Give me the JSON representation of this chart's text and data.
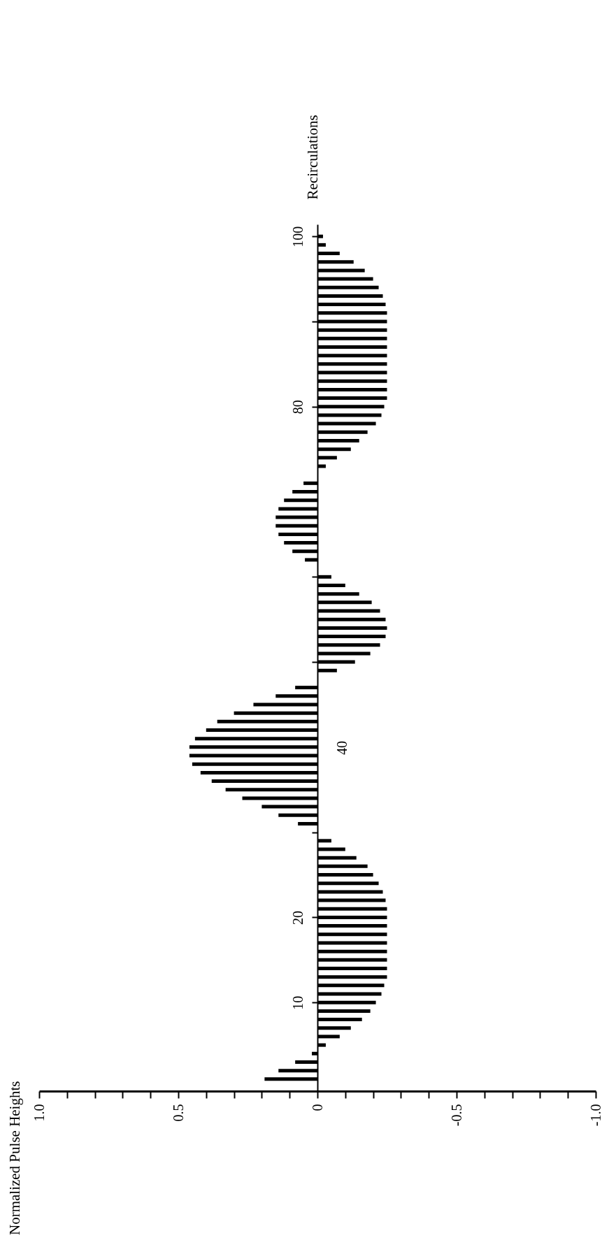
{
  "chart_data": {
    "type": "bar",
    "orientation": "horizontal",
    "ylabel": "Recirculations",
    "annotations": [
      "Normalized Pulse Heights",
      "40"
    ],
    "x": [
      1,
      2,
      3,
      4,
      5,
      6,
      7,
      8,
      9,
      10,
      11,
      12,
      13,
      14,
      15,
      16,
      17,
      18,
      19,
      20,
      21,
      22,
      23,
      24,
      25,
      26,
      27,
      28,
      29,
      30,
      31,
      32,
      33,
      34,
      35,
      36,
      37,
      38,
      39,
      40,
      41,
      42,
      43,
      44,
      45,
      46,
      47,
      48,
      49,
      50,
      51,
      52,
      53,
      54,
      55,
      56,
      57,
      58,
      59,
      60,
      61,
      62,
      63,
      64,
      65,
      66,
      67,
      68,
      69,
      70,
      71,
      72,
      73,
      74,
      75,
      76,
      77,
      78,
      79,
      80,
      81,
      82,
      83,
      84,
      85,
      86,
      87,
      88,
      89,
      90,
      91,
      92,
      93,
      94,
      95,
      96,
      97,
      98,
      99,
      100
    ],
    "values": [
      0.19,
      0.14,
      0.08,
      0.02,
      -0.03,
      -0.08,
      -0.12,
      -0.16,
      -0.19,
      -0.21,
      -0.23,
      -0.24,
      -0.25,
      -0.25,
      -0.25,
      -0.25,
      -0.25,
      -0.25,
      -0.25,
      -0.25,
      -0.25,
      -0.245,
      -0.235,
      -0.22,
      -0.2,
      -0.18,
      -0.14,
      -0.1,
      -0.05,
      0,
      0.07,
      0.14,
      0.2,
      0.27,
      0.33,
      0.38,
      0.42,
      0.45,
      0.46,
      0.46,
      0.44,
      0.4,
      0.36,
      0.3,
      0.23,
      0.15,
      0.08,
      0,
      -0.07,
      -0.135,
      -0.19,
      -0.225,
      -0.245,
      -0.25,
      -0.245,
      -0.225,
      -0.195,
      -0.15,
      -0.1,
      -0.05,
      0,
      0.045,
      0.09,
      0.12,
      0.14,
      0.15,
      0.15,
      0.14,
      0.12,
      0.09,
      0.05,
      0,
      -0.03,
      -0.07,
      -0.12,
      -0.15,
      -0.18,
      -0.21,
      -0.23,
      -0.24,
      -0.25,
      -0.25,
      -0.25,
      -0.25,
      -0.25,
      -0.25,
      -0.25,
      -0.25,
      -0.25,
      -0.25,
      -0.25,
      -0.245,
      -0.235,
      -0.22,
      -0.2,
      -0.17,
      -0.13,
      -0.08,
      -0.03,
      -0.02
    ],
    "color": "#000000",
    "xlim": [
      1.0,
      -1.0
    ],
    "xticks": [
      {
        "value": 1.0,
        "label": "1.0"
      },
      {
        "value": 0.9,
        "label": null
      },
      {
        "value": 0.8,
        "label": null
      },
      {
        "value": 0.7,
        "label": null
      },
      {
        "value": 0.6,
        "label": null
      },
      0.5,
      {
        "value": 0.4,
        "label": null
      },
      {
        "value": 0.3,
        "label": null
      },
      {
        "value": 0.2,
        "label": null
      },
      {
        "value": 0.1,
        "label": null
      },
      0,
      {
        "value": -0.1,
        "label": null
      },
      {
        "value": -0.2,
        "label": null
      },
      {
        "value": -0.3,
        "label": null
      },
      {
        "value": -0.4,
        "label": null
      },
      -0.5,
      {
        "value": -0.6,
        "label": null
      },
      {
        "value": -0.7,
        "label": null
      },
      {
        "value": -0.8,
        "label": null
      },
      {
        "value": -0.9,
        "label": null
      },
      {
        "value": -1.0,
        "label": "-1.0"
      }
    ],
    "ylim": [
      0,
      101
    ],
    "yticks": [
      10,
      20,
      {
        "value": 30,
        "label": null
      },
      {
        "value": 40,
        "label": null
      },
      {
        "value": 50,
        "label": null
      },
      {
        "value": 60,
        "label": null
      },
      {
        "value": 70,
        "label": null
      },
      80,
      {
        "value": 90,
        "label": null
      },
      100
    ],
    "grid": false
  }
}
